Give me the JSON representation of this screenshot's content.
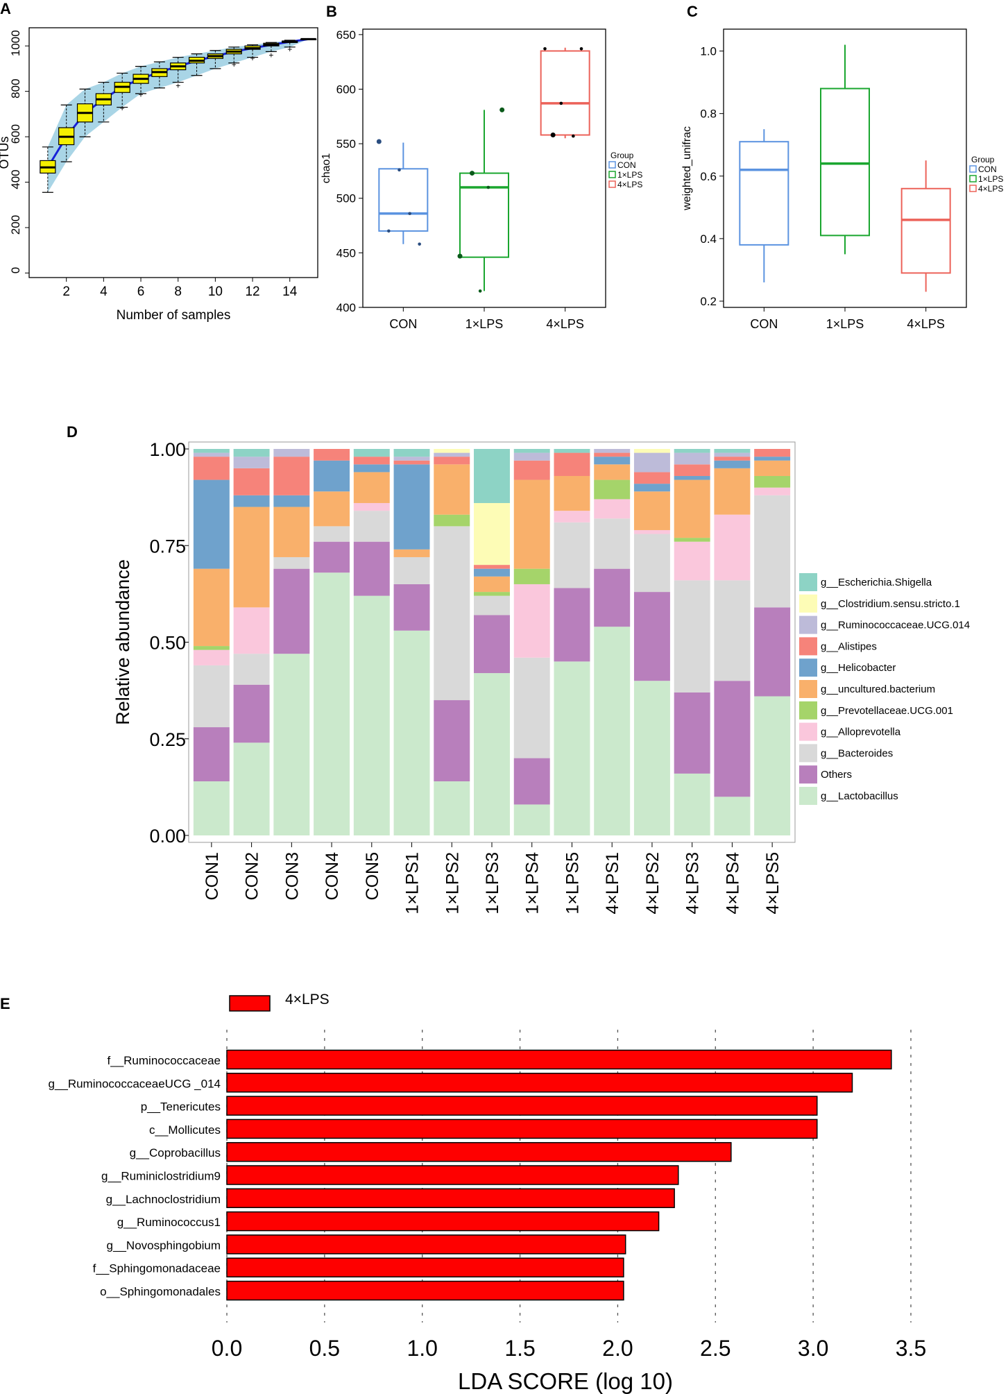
{
  "chart_data": [
    {
      "panel": "A",
      "type": "boxplot",
      "xlabel": "Number of samples",
      "ylabel": "OTUs",
      "xlim": [
        0,
        15.5
      ],
      "ylim": [
        -20,
        1080
      ],
      "xticks": [
        2,
        4,
        6,
        8,
        10,
        12,
        14
      ],
      "yticks": [
        0,
        200,
        400,
        600,
        800,
        1000
      ],
      "boxes": [
        {
          "x": 1,
          "lo": 355,
          "q1": 440,
          "med": 465,
          "q3": 495,
          "hi": 555
        },
        {
          "x": 2,
          "lo": 490,
          "q1": 565,
          "med": 600,
          "q3": 640,
          "hi": 740
        },
        {
          "x": 3,
          "lo": 600,
          "q1": 665,
          "med": 705,
          "q3": 745,
          "hi": 810
        },
        {
          "x": 4,
          "lo": 665,
          "q1": 740,
          "med": 765,
          "q3": 790,
          "hi": 840
        },
        {
          "x": 5,
          "lo": 730,
          "q1": 795,
          "med": 820,
          "q3": 840,
          "hi": 880
        },
        {
          "x": 6,
          "lo": 790,
          "q1": 835,
          "med": 855,
          "q3": 875,
          "hi": 910
        },
        {
          "x": 7,
          "lo": 815,
          "q1": 865,
          "med": 885,
          "q3": 900,
          "hi": 930
        },
        {
          "x": 8,
          "lo": 840,
          "q1": 895,
          "med": 910,
          "q3": 925,
          "hi": 950
        },
        {
          "x": 9,
          "lo": 870,
          "q1": 925,
          "med": 935,
          "q3": 950,
          "hi": 965
        },
        {
          "x": 10,
          "lo": 900,
          "q1": 945,
          "med": 955,
          "q3": 965,
          "hi": 980
        },
        {
          "x": 11,
          "lo": 925,
          "q1": 965,
          "med": 975,
          "q3": 985,
          "hi": 995
        },
        {
          "x": 12,
          "lo": 950,
          "q1": 985,
          "med": 990,
          "q3": 1000,
          "hi": 1005
        },
        {
          "x": 13,
          "lo": 975,
          "q1": 1000,
          "med": 1005,
          "q3": 1012,
          "hi": 1015
        },
        {
          "x": 14,
          "lo": 995,
          "q1": 1015,
          "med": 1018,
          "q3": 1022,
          "hi": 1025
        },
        {
          "x": 15,
          "lo": 1030,
          "q1": 1030,
          "med": 1030,
          "q3": 1030,
          "hi": 1030
        }
      ],
      "outliers": [
        {
          "x": 8,
          "y": 825
        },
        {
          "x": 6,
          "y": 785
        },
        {
          "x": 11,
          "y": 918
        },
        {
          "x": 12,
          "y": 945
        },
        {
          "x": 13,
          "y": 960
        },
        {
          "x": 14,
          "y": 985
        },
        {
          "x": 5,
          "y": 725
        }
      ]
    },
    {
      "panel": "B",
      "type": "boxplot",
      "ylabel": "chao1",
      "ylim": [
        400,
        655
      ],
      "yticks": [
        400,
        450,
        500,
        550,
        600,
        650
      ],
      "categories": [
        "CON",
        "1×LPS",
        "4×LPS"
      ],
      "boxes": [
        {
          "lo": 458,
          "q1": 470,
          "med": 486,
          "q3": 527,
          "hi": 551
        },
        {
          "lo": 415,
          "q1": 446,
          "med": 510,
          "q3": 523,
          "hi": 581
        },
        {
          "lo": 555,
          "q1": 558,
          "med": 587,
          "q3": 635,
          "hi": 638
        }
      ],
      "points": [
        {
          "g": 0,
          "dx": -0.3,
          "y": 552
        },
        {
          "g": 0,
          "dx": -0.18,
          "y": 470
        },
        {
          "g": 0,
          "dx": -0.05,
          "y": 526
        },
        {
          "g": 0,
          "dx": 0.08,
          "y": 486
        },
        {
          "g": 0,
          "dx": 0.2,
          "y": 458
        },
        {
          "g": 1,
          "dx": -0.3,
          "y": 447
        },
        {
          "g": 1,
          "dx": -0.15,
          "y": 523
        },
        {
          "g": 1,
          "dx": -0.05,
          "y": 415
        },
        {
          "g": 1,
          "dx": 0.05,
          "y": 510
        },
        {
          "g": 1,
          "dx": 0.22,
          "y": 581
        },
        {
          "g": 2,
          "dx": -0.25,
          "y": 637
        },
        {
          "g": 2,
          "dx": -0.15,
          "y": 558
        },
        {
          "g": 2,
          "dx": -0.05,
          "y": 587
        },
        {
          "g": 2,
          "dx": 0.1,
          "y": 557
        },
        {
          "g": 2,
          "dx": 0.2,
          "y": 637
        }
      ],
      "legend": {
        "title": "Group",
        "labels": [
          "CON",
          "1×LPS",
          "4×LPS"
        ]
      }
    },
    {
      "panel": "C",
      "type": "boxplot",
      "ylabel": "weighted_unifrac",
      "ylim": [
        0.18,
        1.07
      ],
      "yticks": [
        0.2,
        0.4,
        0.6,
        0.8,
        1.0
      ],
      "categories": [
        "CON",
        "1×LPS",
        "4×LPS"
      ],
      "boxes": [
        {
          "lo": 0.26,
          "q1": 0.38,
          "med": 0.62,
          "q3": 0.71,
          "hi": 0.75
        },
        {
          "lo": 0.35,
          "q1": 0.41,
          "med": 0.64,
          "q3": 0.88,
          "hi": 1.02
        },
        {
          "lo": 0.23,
          "q1": 0.29,
          "med": 0.46,
          "q3": 0.56,
          "hi": 0.65
        }
      ],
      "legend": {
        "title": "Group",
        "labels": [
          "CON",
          "1×LPS",
          "4×LPS"
        ]
      }
    },
    {
      "panel": "D",
      "type": "stacked_bar",
      "ylabel": "Relative abundance",
      "ylim": [
        0,
        1
      ],
      "yticks": [
        0.0,
        0.25,
        0.5,
        0.75,
        1.0
      ],
      "categories": [
        "CON1",
        "CON2",
        "CON3",
        "CON4",
        "CON5",
        "1×LPS1",
        "1×LPS2",
        "1×LPS3",
        "1×LPS4",
        "1×LPS5",
        "4×LPS1",
        "4×LPS2",
        "4×LPS3",
        "4×LPS4",
        "4×LPS5"
      ],
      "series": [
        {
          "name": "g__Lactobacillus",
          "values": [
            0.14,
            0.24,
            0.47,
            0.68,
            0.62,
            0.53,
            0.14,
            0.42,
            0.08,
            0.45,
            0.54,
            0.4,
            0.16,
            0.1,
            0.36
          ]
        },
        {
          "name": "Others",
          "values": [
            0.14,
            0.15,
            0.22,
            0.08,
            0.14,
            0.12,
            0.21,
            0.15,
            0.12,
            0.19,
            0.15,
            0.23,
            0.21,
            0.3,
            0.23
          ]
        },
        {
          "name": "g__Bacteroides",
          "values": [
            0.16,
            0.08,
            0.03,
            0.04,
            0.08,
            0.07,
            0.45,
            0.05,
            0.26,
            0.17,
            0.13,
            0.15,
            0.29,
            0.26,
            0.29
          ]
        },
        {
          "name": "g__Alloprevotella",
          "values": [
            0.04,
            0.12,
            0.0,
            0.0,
            0.02,
            0.0,
            0.0,
            0.0,
            0.19,
            0.03,
            0.05,
            0.01,
            0.1,
            0.17,
            0.02
          ]
        },
        {
          "name": "g__Prevotellaceae.UCG.001",
          "values": [
            0.01,
            0.0,
            0.0,
            0.0,
            0.0,
            0.0,
            0.03,
            0.01,
            0.04,
            0.0,
            0.05,
            0.0,
            0.01,
            0.0,
            0.03
          ]
        },
        {
          "name": "g__uncultured.bacterium",
          "values": [
            0.2,
            0.26,
            0.13,
            0.09,
            0.08,
            0.02,
            0.13,
            0.04,
            0.23,
            0.09,
            0.04,
            0.1,
            0.15,
            0.12,
            0.04
          ]
        },
        {
          "name": "g__Helicobacter",
          "values": [
            0.23,
            0.03,
            0.03,
            0.08,
            0.02,
            0.22,
            0.0,
            0.02,
            0.0,
            0.0,
            0.02,
            0.02,
            0.01,
            0.02,
            0.01
          ]
        },
        {
          "name": "g__Alistipes",
          "values": [
            0.06,
            0.07,
            0.1,
            0.03,
            0.02,
            0.01,
            0.02,
            0.01,
            0.05,
            0.06,
            0.01,
            0.03,
            0.03,
            0.01,
            0.02
          ]
        },
        {
          "name": "g__Ruminococcaceae.UCG.014",
          "values": [
            0.01,
            0.03,
            0.02,
            0.0,
            0.0,
            0.01,
            0.01,
            0.0,
            0.02,
            0.0,
            0.01,
            0.05,
            0.03,
            0.01,
            0.0
          ]
        },
        {
          "name": "g__Clostridium.sensu.stricto.1",
          "values": [
            0.0,
            0.0,
            0.0,
            0.0,
            0.0,
            0.0,
            0.01,
            0.16,
            0.0,
            0.0,
            0.0,
            0.01,
            0.0,
            0.0,
            0.0
          ]
        },
        {
          "name": "g__Escherichia.Shigella",
          "values": [
            0.01,
            0.02,
            0.0,
            0.0,
            0.02,
            0.02,
            0.0,
            0.14,
            0.01,
            0.01,
            0.0,
            0.0,
            0.01,
            0.01,
            0.0
          ]
        }
      ],
      "legend_order": [
        "g__Escherichia.Shigella",
        "g__Clostridium.sensu.stricto.1",
        "g__Ruminococcaceae.UCG.014",
        "g__Alistipes",
        "g__Helicobacter",
        "g__uncultured.bacterium",
        "g__Prevotellaceae.UCG.001",
        "g__Alloprevotella",
        "g__Bacteroides",
        "Others",
        "g__Lactobacillus"
      ]
    },
    {
      "panel": "E",
      "type": "hbar",
      "xlabel": "LDA SCORE (log 10)",
      "xlim": [
        0,
        3.5
      ],
      "xticks": [
        "0.0",
        "0.5",
        "1.0",
        "1.5",
        "2.0",
        "2.5",
        "3.0",
        "3.5"
      ],
      "legend": "4×LPS",
      "categories": [
        "f__Ruminococcaceae",
        "g__RuminococcaceaeUCG _014",
        "p__Tenericutes",
        "c__Mollicutes",
        "g__Coprobacillus",
        "g__Ruminiclostridium9",
        "g__Lachnoclostridium",
        "g__Ruminococcus1",
        "g__Novosphingobium",
        "f__Sphingomonadaceae",
        "o__Sphingomonadales"
      ],
      "values": [
        3.4,
        3.2,
        3.02,
        3.02,
        2.58,
        2.31,
        2.29,
        2.21,
        2.04,
        2.03,
        2.03
      ]
    }
  ],
  "panel_labels": [
    "A",
    "B",
    "C",
    "D",
    "E"
  ],
  "colors": {
    "con": "#5b93e0",
    "lps1": "#1aa62f",
    "lps4": "#ec6259",
    "ribbon": "#a9d5e6",
    "box_a": "#f5f000",
    "line_a": "#1722d8",
    "lda": "#fe0000",
    "stack": [
      "#cbe9cc",
      "#b87fbc",
      "#d9d9d9",
      "#fac7dc",
      "#a5d46a",
      "#f9b06b",
      "#6fa2cc",
      "#f6837a",
      "#bdbbd9",
      "#fdfcb6",
      "#8dd3c5"
    ]
  }
}
